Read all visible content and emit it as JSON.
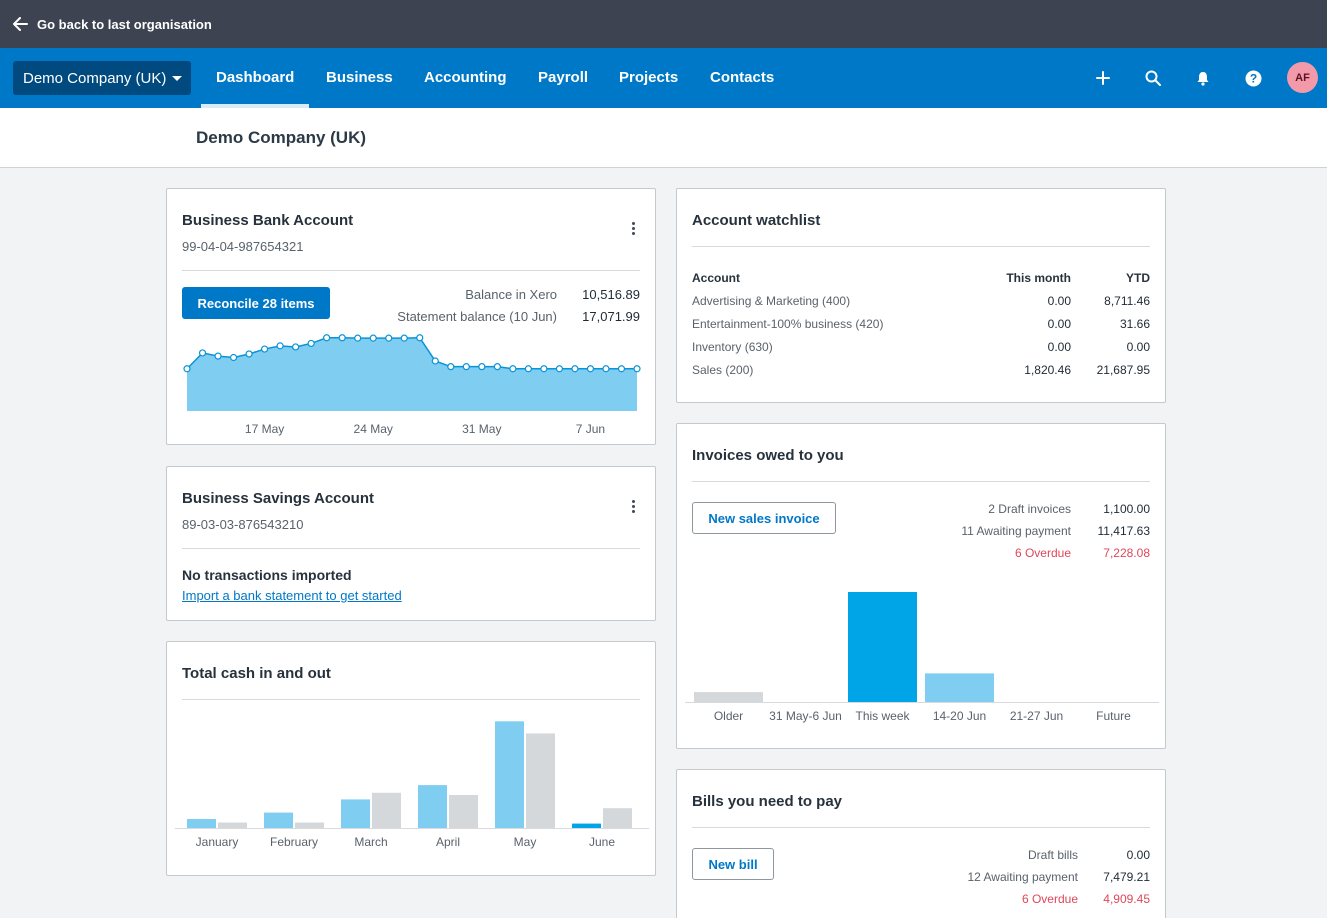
{
  "topbar": {
    "back_label": "Go back to last organisation"
  },
  "nav": {
    "org_name": "Demo Company (UK)",
    "tabs": [
      "Dashboard",
      "Business",
      "Accounting",
      "Payroll",
      "Projects",
      "Contacts"
    ],
    "active_tab": "Dashboard",
    "icons": [
      "plus-icon",
      "search-icon",
      "bell-icon",
      "help-icon"
    ],
    "avatar_initials": "AF"
  },
  "org_title": "Demo Company (UK)",
  "bank_account": {
    "title": "Business Bank Account",
    "number": "99-04-04-987654321",
    "reconcile_label": "Reconcile 28 items",
    "balance_xero_label": "Balance in Xero",
    "balance_xero_value": "10,516.89",
    "statement_label": "Statement balance (10 Jun)",
    "statement_value": "17,071.99",
    "chart_data": {
      "type": "area",
      "x_ticks": [
        "17 May",
        "24 May",
        "31 May",
        "7 Jun"
      ],
      "values": [
        12.0,
        16.5,
        15.6,
        15.2,
        16.2,
        17.6,
        18.5,
        18.2,
        19.2,
        20.8,
        20.8,
        20.7,
        20.7,
        20.7,
        20.7,
        20.8,
        14.2,
        12.6,
        12.6,
        12.6,
        12.6,
        12.0,
        12.0,
        12.0,
        12.0,
        12.0,
        12.0,
        12.0,
        12.0,
        12.0
      ],
      "ylim": [
        0,
        25
      ],
      "grid": false
    }
  },
  "savings_account": {
    "title": "Business Savings Account",
    "number": "89-03-03-876543210",
    "empty_title": "No transactions imported",
    "import_link": "Import a bank statement to get started"
  },
  "cash": {
    "title": "Total cash in and out",
    "chart_data": {
      "type": "bar",
      "categories": [
        "January",
        "February",
        "March",
        "April",
        "May",
        "June"
      ],
      "series": [
        {
          "values": [
            8.2,
            14.0,
            26.0,
            39.0,
            97.0,
            4.0
          ],
          "color": "#80cdf2",
          "current_color": "#00a5e8"
        },
        {
          "values": [
            5.0,
            5.0,
            32.0,
            30.0,
            86.0,
            18.0
          ],
          "color": "#d5d8db"
        }
      ],
      "ylim": [
        0,
        100
      ],
      "grid": false
    }
  },
  "watchlist": {
    "title": "Account watchlist",
    "columns": [
      "Account",
      "This month",
      "YTD"
    ],
    "rows": [
      [
        "Advertising & Marketing (400)",
        "0.00",
        "8,711.46"
      ],
      [
        "Entertainment-100% business (420)",
        "0.00",
        "31.66"
      ],
      [
        "Inventory (630)",
        "0.00",
        "0.00"
      ],
      [
        "Sales (200)",
        "1,820.46",
        "21,687.95"
      ]
    ]
  },
  "invoices": {
    "title": "Invoices owed to you",
    "new_label": "New sales invoice",
    "stats": [
      {
        "label": "2 Draft invoices",
        "value": "1,100.00",
        "overdue": false
      },
      {
        "label": "11 Awaiting payment",
        "value": "11,417.63",
        "overdue": false
      },
      {
        "label": "6 Overdue",
        "value": "7,228.08",
        "overdue": true
      }
    ],
    "chart_data": {
      "type": "bar",
      "categories": [
        "Older",
        "31 May-6 Jun",
        "This week",
        "14-20 Jun",
        "21-27 Jun",
        "Future"
      ],
      "values": [
        9.0,
        0,
        100.0,
        26.0,
        0,
        0
      ],
      "colors": [
        "#d5d8db",
        "#d5d8db",
        "#00a5e8",
        "#80cdf2",
        "#80cdf2",
        "#80cdf2"
      ],
      "ylim": [
        0,
        100
      ],
      "grid": false
    }
  },
  "bills": {
    "title": "Bills you need to pay",
    "new_label": "New bill",
    "stats": [
      {
        "label": "Draft bills",
        "value": "0.00",
        "overdue": false
      },
      {
        "label": "12 Awaiting payment",
        "value": "7,479.21",
        "overdue": false
      },
      {
        "label": "6 Overdue",
        "value": "4,909.45",
        "overdue": true
      }
    ]
  }
}
